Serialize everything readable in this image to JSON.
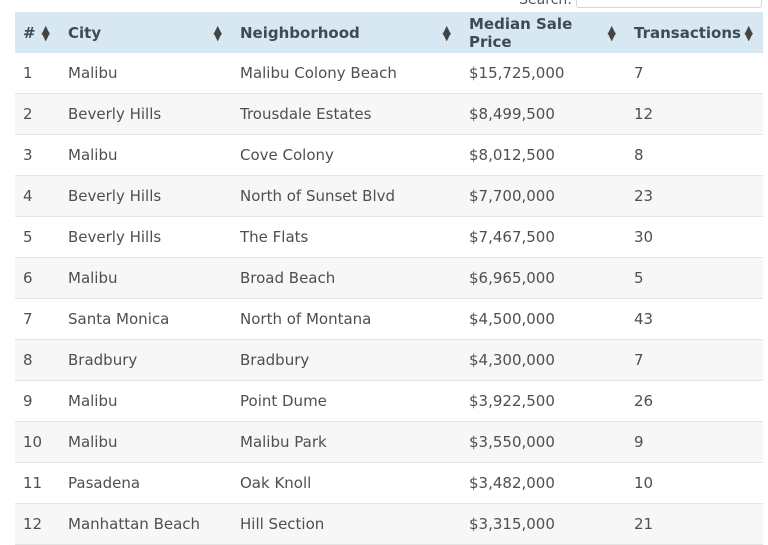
{
  "search": {
    "label": "Search:",
    "value": ""
  },
  "table": {
    "headers": [
      "#",
      "City",
      "Neighborhood",
      "Median Sale Price",
      "Transactions"
    ],
    "rows": [
      [
        "1",
        "Malibu",
        "Malibu Colony Beach",
        "$15,725,000",
        "7"
      ],
      [
        "2",
        "Beverly Hills",
        "Trousdale Estates",
        "$8,499,500",
        "12"
      ],
      [
        "3",
        "Malibu",
        "Cove Colony",
        "$8,012,500",
        "8"
      ],
      [
        "4",
        "Beverly Hills",
        "North of Sunset Blvd",
        "$7,700,000",
        "23"
      ],
      [
        "5",
        "Beverly Hills",
        "The Flats",
        "$7,467,500",
        "30"
      ],
      [
        "6",
        "Malibu",
        "Broad Beach",
        "$6,965,000",
        "5"
      ],
      [
        "7",
        "Santa Monica",
        "North of Montana",
        "$4,500,000",
        "43"
      ],
      [
        "8",
        "Bradbury",
        "Bradbury",
        "$4,300,000",
        "7"
      ],
      [
        "9",
        "Malibu",
        "Point Dume",
        "$3,922,500",
        "26"
      ],
      [
        "10",
        "Malibu",
        "Malibu Park",
        "$3,550,000",
        "9"
      ],
      [
        "11",
        "Pasadena",
        "Oak Knoll",
        "$3,482,000",
        "10"
      ],
      [
        "12",
        "Manhattan Beach",
        "Hill Section",
        "$3,315,000",
        "21"
      ]
    ]
  },
  "colors": {
    "header_bg": "#d7e8f2",
    "row_alt": "#f7f7f7"
  }
}
